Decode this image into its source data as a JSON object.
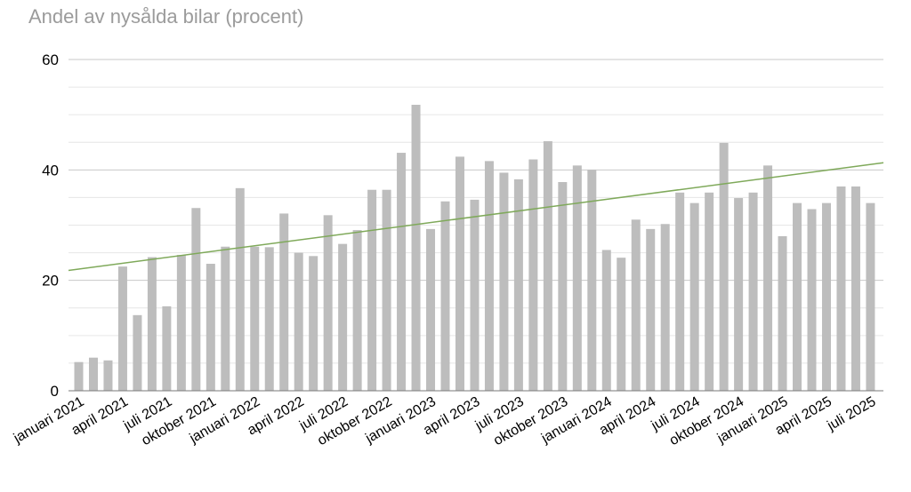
{
  "chart_data": {
    "type": "bar",
    "title": "Andel av nysålda bilar (procent)",
    "xlabel": "",
    "ylabel": "",
    "ylim": [
      0,
      60
    ],
    "yticks": [
      "0",
      "20",
      "40",
      "60"
    ],
    "yticks_values": [
      0,
      20,
      40,
      60
    ],
    "grid": true,
    "legend": "none",
    "bar_color": "#bdbdbd",
    "trend_color": "#7fa95a",
    "categories": [
      "januari 2021",
      "februari 2021",
      "mars 2021",
      "april 2021",
      "maj 2021",
      "juni 2021",
      "juli 2021",
      "augusti 2021",
      "september 2021",
      "oktober 2021",
      "november 2021",
      "december 2021",
      "januari 2022",
      "februari 2022",
      "mars 2022",
      "april 2022",
      "maj 2022",
      "juni 2022",
      "juli 2022",
      "augusti 2022",
      "september 2022",
      "oktober 2022",
      "november 2022",
      "december 2022",
      "januari 2023",
      "februari 2023",
      "mars 2023",
      "april 2023",
      "maj 2023",
      "juni 2023",
      "juli 2023",
      "augusti 2023",
      "september 2023",
      "oktober 2023",
      "november 2023",
      "december 2023",
      "januari 2024",
      "februari 2024",
      "mars 2024",
      "april 2024",
      "maj 2024",
      "juni 2024",
      "juli 2024",
      "augusti 2024",
      "september 2024",
      "oktober 2024",
      "november 2024",
      "december 2024",
      "januari 2025",
      "februari 2025",
      "mars 2025",
      "april 2025",
      "maj 2025",
      "juni 2025",
      "juli 2025"
    ],
    "x_tick_labels": [
      "januari 2021",
      "april 2021",
      "juli 2021",
      "oktober 2021",
      "januari 2022",
      "april 2022",
      "juli 2022",
      "oktober 2022",
      "januari 2023",
      "april 2023",
      "juli 2023",
      "oktober 2023",
      "januari 2024",
      "april 2024",
      "juli 2024",
      "oktober 2024",
      "januari 2025",
      "april 2025",
      "juli 2025"
    ],
    "values": [
      5.2,
      6.0,
      5.5,
      22.5,
      13.7,
      24.2,
      15.3,
      24.6,
      33.1,
      23.0,
      26.1,
      36.7,
      26.1,
      26.0,
      32.1,
      25.0,
      24.4,
      31.8,
      26.6,
      29.1,
      36.4,
      36.4,
      43.1,
      51.8,
      29.3,
      34.3,
      42.4,
      34.6,
      41.6,
      39.5,
      38.3,
      41.9,
      45.2,
      37.8,
      40.8,
      40.0,
      25.5,
      24.1,
      31.0,
      29.3,
      30.2,
      35.9,
      34.0,
      35.9,
      44.9,
      34.9,
      35.9,
      40.8,
      28.0,
      34.0,
      32.9,
      34.0,
      37.0,
      37.0,
      34.0
    ],
    "trendline": {
      "start": 21.8,
      "end": 41.3
    }
  }
}
